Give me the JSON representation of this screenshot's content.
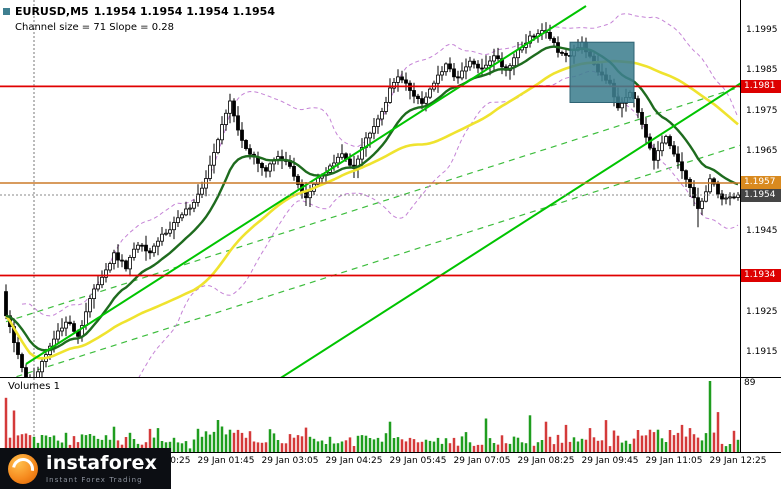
{
  "header": {
    "symbol": "EURUSD,M5",
    "ohlc": "1.1954 1.1954 1.1954 1.1954",
    "channel_info": "Channel size = 71 Slope = 0.28"
  },
  "price_axis": {
    "ticks": [
      "1.1995",
      "1.1985",
      "1.1975",
      "1.1965",
      "1.1945",
      "1.1925",
      "1.1915"
    ],
    "badges": [
      {
        "label": "1.1981",
        "price": 1.1981,
        "bg": "#dd0000"
      },
      {
        "label": "1.1957",
        "price": 1.1957,
        "bg": "#d98a1f"
      },
      {
        "label": "1.1954",
        "price": 1.1954,
        "bg": "#454545"
      },
      {
        "label": "1.1934",
        "price": 1.1934,
        "bg": "#dd0000"
      }
    ]
  },
  "time_axis": {
    "labels": [
      {
        "text": "29 Jan 00:25",
        "i": 39
      },
      {
        "text": "29 Jan 01:45",
        "i": 55
      },
      {
        "text": "29 Jan 03:05",
        "i": 71
      },
      {
        "text": "29 Jan 04:25",
        "i": 87
      },
      {
        "text": "29 Jan 05:45",
        "i": 103
      },
      {
        "text": "29 Jan 07:05",
        "i": 119
      },
      {
        "text": "29 Jan 08:25",
        "i": 135
      },
      {
        "text": "29 Jan 09:45",
        "i": 151
      },
      {
        "text": "29 Jan 11:05",
        "i": 167
      },
      {
        "text": "29 Jan 12:25",
        "i": 183
      }
    ]
  },
  "volume_pane": {
    "label": "Volumes 1",
    "max": "89"
  },
  "watermark": {
    "brand": "instaforex",
    "tagline": "Instant Forex Trading"
  },
  "chart_data": {
    "type": "candlestick",
    "symbol": "EURUSD",
    "timeframe": "M5",
    "last_price": 1.1954,
    "bars": 184,
    "y_range": [
      1.191,
      1.2001
    ],
    "price_ticks": [
      1.1995,
      1.1985,
      1.1975,
      1.1965,
      1.1945,
      1.1925,
      1.1915
    ],
    "channel": {
      "size": 71,
      "slope": 0.28
    },
    "levels": [
      {
        "type": "resistance",
        "price": 1.1981,
        "color": "#e00000",
        "width": 1.8
      },
      {
        "type": "support",
        "price": 1.1934,
        "color": "#e00000",
        "width": 1.8
      },
      {
        "type": "entry",
        "price": 1.1957,
        "color": "#cc7a29",
        "width": 1.4
      },
      {
        "type": "last-price",
        "price": 1.1954,
        "color": "#888888",
        "width": 1,
        "dash": "2,2"
      }
    ],
    "price_path_anchors": [
      [
        0,
        1.1924
      ],
      [
        3,
        1.1914
      ],
      [
        6,
        1.1906
      ],
      [
        9,
        1.1912
      ],
      [
        12,
        1.1918
      ],
      [
        15,
        1.1923
      ],
      [
        18,
        1.1919
      ],
      [
        21,
        1.1928
      ],
      [
        24,
        1.1934
      ],
      [
        27,
        1.1939
      ],
      [
        30,
        1.1936
      ],
      [
        33,
        1.1942
      ],
      [
        36,
        1.1939
      ],
      [
        39,
        1.1944
      ],
      [
        42,
        1.1947
      ],
      [
        45,
        1.195
      ],
      [
        48,
        1.1954
      ],
      [
        50,
        1.1958
      ],
      [
        52,
        1.1964
      ],
      [
        54,
        1.1972
      ],
      [
        56,
        1.1977
      ],
      [
        58,
        1.197
      ],
      [
        61,
        1.1964
      ],
      [
        65,
        1.196
      ],
      [
        68,
        1.1964
      ],
      [
        71,
        1.1961
      ],
      [
        75,
        1.1953
      ],
      [
        78,
        1.1958
      ],
      [
        81,
        1.1961
      ],
      [
        84,
        1.1964
      ],
      [
        87,
        1.1961
      ],
      [
        89,
        1.1966
      ],
      [
        91,
        1.197
      ],
      [
        94,
        1.1975
      ],
      [
        96,
        1.198
      ],
      [
        98,
        1.1984
      ],
      [
        101,
        1.198
      ],
      [
        104,
        1.1977
      ],
      [
        107,
        1.1982
      ],
      [
        110,
        1.1986
      ],
      [
        113,
        1.1983
      ],
      [
        116,
        1.1987
      ],
      [
        119,
        1.1985
      ],
      [
        122,
        1.1989
      ],
      [
        125,
        1.1985
      ],
      [
        128,
        1.199
      ],
      [
        131,
        1.1993
      ],
      [
        135,
        1.1995
      ],
      [
        138,
        1.199
      ],
      [
        141,
        1.1988
      ],
      [
        144,
        1.1992
      ],
      [
        146,
        1.1988
      ],
      [
        148,
        1.1985
      ],
      [
        151,
        1.1982
      ],
      [
        153,
        1.1976
      ],
      [
        156,
        1.198
      ],
      [
        159,
        1.1972
      ],
      [
        162,
        1.1963
      ],
      [
        165,
        1.1968
      ],
      [
        168,
        1.1962
      ],
      [
        171,
        1.1956
      ],
      [
        173,
        1.195
      ],
      [
        176,
        1.1958
      ],
      [
        179,
        1.1953
      ],
      [
        183,
        1.1954
      ]
    ],
    "trendlines": [
      {
        "style": "solid",
        "color": "#00c400",
        "i1": 5,
        "p1": 1.1912,
        "i2": 145,
        "p2": 1.2001
      },
      {
        "style": "solid",
        "color": "#00c400",
        "i1": 60,
        "p1": 1.1903,
        "i2": 184,
        "p2": 1.1982
      },
      {
        "style": "dashed",
        "color": "#3dbd3d",
        "i1": 0,
        "p1": 1.19225,
        "i2": 184,
        "p2": 1.1981
      },
      {
        "style": "dashed",
        "color": "#3dbd3d",
        "i1": 0,
        "p1": 1.1908,
        "i2": 184,
        "p2": 1.19665
      }
    ],
    "highlight_box": {
      "i1": 141,
      "i2": 157,
      "p_top": 1.1992,
      "p_bottom": 1.1977,
      "color": "#3f7f90"
    },
    "indicators": [
      {
        "name": "ma-fast",
        "color": "#1e6b1e",
        "period": 16
      },
      {
        "name": "ma-slow",
        "color": "#efe32e",
        "period": 48
      },
      {
        "name": "bands",
        "color": "#c583d6",
        "period": 26
      }
    ],
    "separator_x_idx": 7,
    "volume": {
      "max": 89,
      "spikes": {
        "0": 68,
        "2": 52,
        "38": 30,
        "50": 26,
        "54": 32,
        "56": 28,
        "96": 38,
        "120": 42,
        "131": 46,
        "135": 38,
        "140": 34,
        "146": 30,
        "150": 40,
        "163": 28,
        "169": 34,
        "171": 30,
        "176": 89,
        "178": 50
      }
    }
  }
}
